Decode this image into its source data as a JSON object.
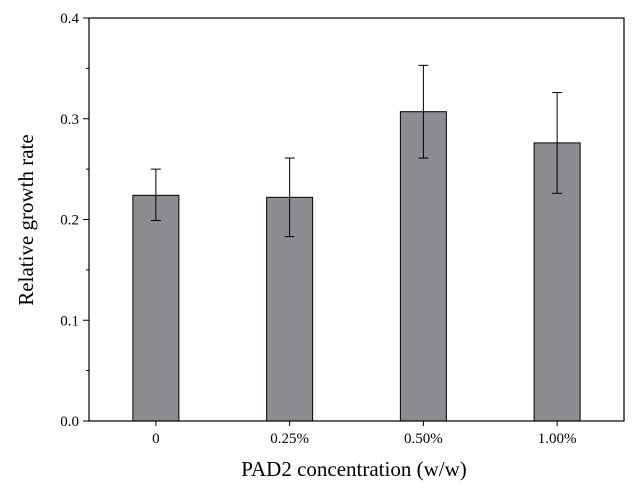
{
  "chart_data": {
    "type": "bar",
    "title": "",
    "xlabel": "PAD2 concentration (w/w)",
    "ylabel": "Relative growth rate",
    "categories": [
      "0",
      "0.25%",
      "0.50%",
      "1.00%"
    ],
    "values": [
      0.224,
      0.222,
      0.307,
      0.276
    ],
    "error_low": [
      0.199,
      0.183,
      0.261,
      0.226
    ],
    "error_high": [
      0.25,
      0.261,
      0.353,
      0.326
    ],
    "ylim": [
      0,
      0.4
    ],
    "yticks": [
      "0.0",
      "0.1",
      "0.2",
      "0.3",
      "0.4"
    ],
    "grid": false,
    "bar_color": "#8c8d91"
  }
}
